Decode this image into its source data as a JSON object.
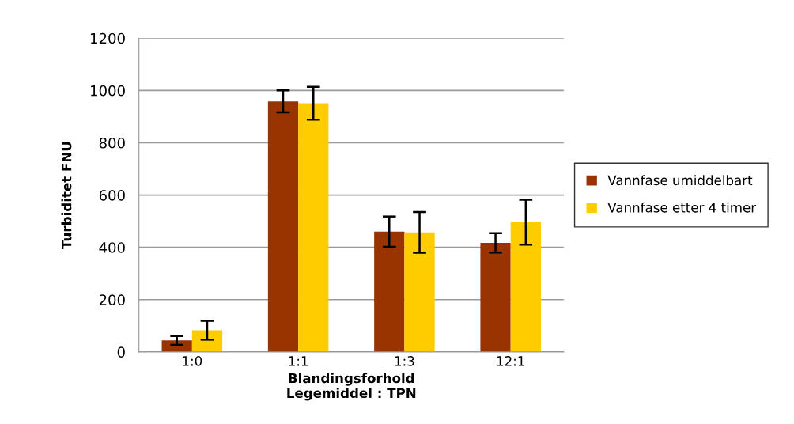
{
  "chart_data": {
    "type": "bar",
    "xlabel": "Blandingsforhold\nLegemiddel : TPN",
    "ylabel": "Turbiditet FNU",
    "categories": [
      "1:0",
      "1:1",
      "1:3",
      "12:1"
    ],
    "series": [
      {
        "name": "Vannfase umiddelbart",
        "color": "#993300",
        "values": [
          44,
          958,
          460,
          417
        ],
        "errors": [
          17,
          42,
          58,
          37
        ]
      },
      {
        "name": "Vannfase etter 4 timer",
        "color": "#ffcc00",
        "values": [
          83,
          951,
          457,
          496
        ],
        "errors": [
          36,
          63,
          78,
          86
        ]
      }
    ],
    "ylim": [
      0,
      1200
    ],
    "yticks": [
      0,
      200,
      400,
      600,
      800,
      1000,
      1200
    ],
    "grid": "y",
    "legend": "right"
  }
}
